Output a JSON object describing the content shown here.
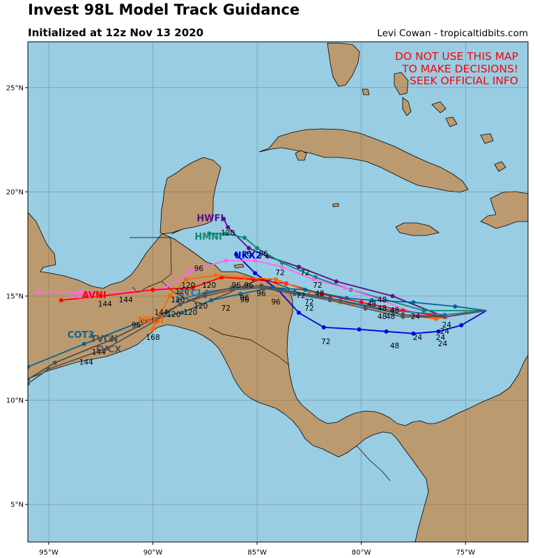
{
  "title": "Invest 98L Model Track Guidance",
  "subtitle": "Initialized at 12z Nov 13 2020",
  "credit": "Levi Cowan - tropicaltidbits.com",
  "warning": [
    "DO NOT USE THIS MAP",
    "TO MAKE DECISIONS!",
    "SEEK OFFICIAL INFO"
  ],
  "colors": {
    "ocean": "#98cde3",
    "land": "#bc9a6f",
    "warning": "#ff0000"
  },
  "chart_data": {
    "type": "map",
    "lon_range": [
      -96,
      -72
    ],
    "lat_range": [
      3.2,
      27.2
    ],
    "lon_ticks": [
      {
        "v": -95,
        "label": "95°W"
      },
      {
        "v": -90,
        "label": "90°W"
      },
      {
        "v": -85,
        "label": "85°W"
      },
      {
        "v": -80,
        "label": "80°W"
      },
      {
        "v": -75,
        "label": "75°W"
      }
    ],
    "lat_ticks": [
      {
        "v": 5,
        "label": "5°N"
      },
      {
        "v": 10,
        "label": "10°N"
      },
      {
        "v": 15,
        "label": "15°N"
      },
      {
        "v": 20,
        "label": "20°N"
      },
      {
        "v": 25,
        "label": "25°N"
      }
    ],
    "grid": true,
    "hour_labels": [
      {
        "t": "24",
        "lon": -77.4,
        "lat": 13.9,
        "c": "#000"
      },
      {
        "t": "24",
        "lon": -77.3,
        "lat": 12.9,
        "c": "#000"
      },
      {
        "t": "24",
        "lon": -76.2,
        "lat": 12.9,
        "c": "#000"
      },
      {
        "t": "24",
        "lon": -76.1,
        "lat": 12.6,
        "c": "#000"
      },
      {
        "t": "24",
        "lon": -76.0,
        "lat": 13.2,
        "c": "#000"
      },
      {
        "t": "24",
        "lon": -75.9,
        "lat": 13.5,
        "c": "#000"
      },
      {
        "t": "48",
        "lon": -79.5,
        "lat": 14.5,
        "c": "#000"
      },
      {
        "t": "48",
        "lon": -79.0,
        "lat": 14.7,
        "c": "#000"
      },
      {
        "t": "48",
        "lon": -78.4,
        "lat": 14.2,
        "c": "#000"
      },
      {
        "t": "48",
        "lon": -79.0,
        "lat": 14.3,
        "c": "#000"
      },
      {
        "t": "48",
        "lon": -79.0,
        "lat": 13.9,
        "c": "#000"
      },
      {
        "t": "48",
        "lon": -78.6,
        "lat": 13.9,
        "c": "#000"
      },
      {
        "t": "48",
        "lon": -78.4,
        "lat": 12.5,
        "c": "#000"
      },
      {
        "t": "48",
        "lon": -82.0,
        "lat": 15.0,
        "c": "#000"
      },
      {
        "t": "72",
        "lon": -83.9,
        "lat": 16.0,
        "c": "#000"
      },
      {
        "t": "72",
        "lon": -82.7,
        "lat": 16.0,
        "c": "#000"
      },
      {
        "t": "72",
        "lon": -82.1,
        "lat": 15.4,
        "c": "#000"
      },
      {
        "t": "72",
        "lon": -82.9,
        "lat": 14.9,
        "c": "#000"
      },
      {
        "t": "72",
        "lon": -82.5,
        "lat": 14.6,
        "c": "#000"
      },
      {
        "t": "72",
        "lon": -82.5,
        "lat": 14.3,
        "c": "#000"
      },
      {
        "t": "72",
        "lon": -81.7,
        "lat": 12.7,
        "c": "#000"
      },
      {
        "t": "72",
        "lon": -86.5,
        "lat": 14.3,
        "c": "#000"
      },
      {
        "t": "96",
        "lon": -87.8,
        "lat": 16.2,
        "c": "#000"
      },
      {
        "t": "96",
        "lon": -86.0,
        "lat": 15.4,
        "c": "#000"
      },
      {
        "t": "96",
        "lon": -85.4,
        "lat": 15.4,
        "c": "#000"
      },
      {
        "t": "96",
        "lon": -85.6,
        "lat": 14.8,
        "c": "#000"
      },
      {
        "t": "96",
        "lon": -85.6,
        "lat": 14.7,
        "c": "#000"
      },
      {
        "t": "96",
        "lon": -84.8,
        "lat": 15.0,
        "c": "#000"
      },
      {
        "t": "96",
        "lon": -84.1,
        "lat": 14.6,
        "c": "#000"
      },
      {
        "t": "96",
        "lon": -85.5,
        "lat": 16.9,
        "c": "#000"
      },
      {
        "t": "96",
        "lon": -84.7,
        "lat": 16.9,
        "c": "#000"
      },
      {
        "t": "96",
        "lon": -90.8,
        "lat": 13.5,
        "c": "#000"
      },
      {
        "t": "120",
        "lon": -86.4,
        "lat": 17.9,
        "c": "#000"
      },
      {
        "t": "120",
        "lon": -87.3,
        "lat": 15.4,
        "c": "#000"
      },
      {
        "t": "120",
        "lon": -88.3,
        "lat": 15.4,
        "c": "#000"
      },
      {
        "t": "120",
        "lon": -88.6,
        "lat": 15.1,
        "c": "#000"
      },
      {
        "t": "120",
        "lon": -88.8,
        "lat": 14.7,
        "c": "#000"
      },
      {
        "t": "120",
        "lon": -87.7,
        "lat": 14.4,
        "c": "#000"
      },
      {
        "t": "120",
        "lon": -88.2,
        "lat": 14.1,
        "c": "#000"
      },
      {
        "t": "120",
        "lon": -89.0,
        "lat": 14.0,
        "c": "#000"
      },
      {
        "t": "144",
        "lon": -92.3,
        "lat": 14.5,
        "c": "#000"
      },
      {
        "t": "144",
        "lon": -91.3,
        "lat": 14.7,
        "c": "#000"
      },
      {
        "t": "144",
        "lon": -89.6,
        "lat": 14.1,
        "c": "#000"
      },
      {
        "t": "144",
        "lon": -92.6,
        "lat": 12.2,
        "c": "#000"
      },
      {
        "t": "144",
        "lon": -93.2,
        "lat": 11.7,
        "c": "#000"
      },
      {
        "t": "168",
        "lon": -90.0,
        "lat": 12.9,
        "c": "#000"
      }
    ],
    "series": [
      {
        "name": "HWFI",
        "color": "#5b0f8a",
        "labelLon": -87.9,
        "labelLat": 18.6,
        "points": [
          [
            -74.0,
            14.3
          ],
          [
            -76.0,
            14.0
          ],
          [
            -78.5,
            15.0
          ],
          [
            -81.2,
            15.7
          ],
          [
            -83.0,
            16.4
          ],
          [
            -84.5,
            16.9
          ],
          [
            -85.4,
            17.3
          ],
          [
            -86.4,
            18.3
          ],
          [
            -86.6,
            18.7
          ]
        ]
      },
      {
        "name": "HMNI",
        "color": "#0a8a6a",
        "labelLon": -88.0,
        "labelLat": 17.7,
        "points": [
          [
            -74.0,
            14.3
          ],
          [
            -77.0,
            14.3
          ],
          [
            -80.5,
            15.3
          ],
          [
            -82.2,
            15.9
          ],
          [
            -83.8,
            16.6
          ],
          [
            -85.0,
            17.3
          ],
          [
            -85.6,
            17.8
          ],
          [
            -86.5,
            18.0
          ],
          [
            -87.3,
            18.0
          ]
        ]
      },
      {
        "name": "UKX2",
        "color": "#0000dd",
        "labelLon": -86.1,
        "labelLat": 16.8,
        "points": [
          [
            -74.0,
            14.3
          ],
          [
            -75.2,
            13.6
          ],
          [
            -76.3,
            13.3
          ],
          [
            -77.5,
            13.2
          ],
          [
            -78.8,
            13.3
          ],
          [
            -80.1,
            13.4
          ],
          [
            -81.8,
            13.5
          ],
          [
            -83.0,
            14.2
          ],
          [
            -84.0,
            15.3
          ],
          [
            -85.1,
            16.1
          ],
          [
            -86.0,
            17.0
          ]
        ]
      },
      {
        "name": "CEMN",
        "color": "#ff66ee",
        "labelLon": -94.0,
        "labelLat": 14.9,
        "points": [
          [
            -74.0,
            14.3
          ],
          [
            -75.9,
            14.0
          ],
          [
            -77.3,
            14.1
          ],
          [
            -79.0,
            14.8
          ],
          [
            -80.8,
            15.4
          ],
          [
            -82.3,
            15.8
          ],
          [
            -83.8,
            16.4
          ],
          [
            -85.1,
            16.7
          ],
          [
            -86.5,
            16.7
          ],
          [
            -88.2,
            16.2
          ],
          [
            -89.4,
            15.4
          ],
          [
            -91.0,
            15.2
          ],
          [
            -93.5,
            15.2
          ],
          [
            -95.5,
            15.2
          ]
        ]
      },
      {
        "name": "AVNI",
        "color": "#ff0000",
        "labelLon": -93.4,
        "labelLat": 14.9,
        "points": [
          [
            -74.0,
            14.3
          ],
          [
            -76.0,
            14.0
          ],
          [
            -78.0,
            14.3
          ],
          [
            -80.0,
            14.7
          ],
          [
            -81.9,
            15.1
          ],
          [
            -83.6,
            15.6
          ],
          [
            -85.2,
            15.8
          ],
          [
            -86.7,
            15.9
          ],
          [
            -88.1,
            15.4
          ],
          [
            -90.0,
            15.3
          ],
          [
            -92.5,
            15.0
          ],
          [
            -94.4,
            14.8
          ]
        ]
      },
      {
        "name": "NVGI",
        "color": "#ff6600",
        "labelLon": -90.7,
        "labelLat": 13.7,
        "points": [
          [
            -74.0,
            14.3
          ],
          [
            -75.0,
            14.2
          ],
          [
            -76.4,
            13.9
          ],
          [
            -78.0,
            14.1
          ],
          [
            -79.5,
            14.5
          ],
          [
            -81.0,
            14.7
          ],
          [
            -82.5,
            15.2
          ],
          [
            -84.1,
            15.8
          ],
          [
            -85.6,
            15.9
          ],
          [
            -87.0,
            16.0
          ],
          [
            -88.4,
            15.8
          ],
          [
            -89.2,
            15.0
          ],
          [
            -89.7,
            14.0
          ],
          [
            -90.0,
            13.4
          ]
        ]
      },
      {
        "name": "CTCI",
        "color": "#1f77b4",
        "labelLon": -88.8,
        "labelLat": 15.0,
        "points": [
          [
            -74.0,
            14.3
          ],
          [
            -76.0,
            14.1
          ],
          [
            -78.5,
            14.3
          ],
          [
            -81.0,
            14.8
          ],
          [
            -83.0,
            15.1
          ],
          [
            -84.6,
            15.4
          ],
          [
            -86.0,
            15.4
          ],
          [
            -87.4,
            15.2
          ],
          [
            -88.8,
            14.8
          ]
        ]
      },
      {
        "name": "COT3",
        "color": "#006699",
        "labelLon": -94.1,
        "labelLat": 13.0,
        "points": [
          [
            -74.0,
            14.3
          ],
          [
            -75.5,
            14.5
          ],
          [
            -77.5,
            14.7
          ],
          [
            -79.5,
            14.8
          ],
          [
            -80.7,
            14.9
          ],
          [
            -82.7,
            15.3
          ],
          [
            -84.3,
            15.4
          ],
          [
            -85.8,
            15.1
          ],
          [
            -87.2,
            14.8
          ],
          [
            -88.6,
            14.2
          ],
          [
            -90.5,
            13.8
          ],
          [
            -93.3,
            12.7
          ],
          [
            -96.0,
            11.6
          ]
        ]
      },
      {
        "name": "TVCN",
        "color": "#4d4d4d",
        "labelLon": -93.0,
        "labelLat": 12.8,
        "points": [
          [
            -74.0,
            14.3
          ],
          [
            -76.0,
            14.0
          ],
          [
            -78.0,
            14.1
          ],
          [
            -79.8,
            14.5
          ],
          [
            -81.5,
            14.9
          ],
          [
            -83.2,
            15.2
          ],
          [
            -84.8,
            15.5
          ],
          [
            -86.2,
            15.4
          ],
          [
            -87.5,
            15.1
          ],
          [
            -88.7,
            14.6
          ],
          [
            -90.0,
            13.9
          ],
          [
            -92.0,
            12.9
          ],
          [
            -94.7,
            11.8
          ],
          [
            -96.0,
            11.0
          ]
        ]
      },
      {
        "name": "TVCX",
        "color": "#555555",
        "labelLon": -92.8,
        "labelLat": 12.3,
        "points": [
          [
            -74.0,
            14.3
          ],
          [
            -76.0,
            14.0
          ],
          [
            -78.0,
            14.0
          ],
          [
            -79.8,
            14.4
          ],
          [
            -81.5,
            14.8
          ],
          [
            -83.2,
            15.1
          ],
          [
            -84.8,
            15.4
          ],
          [
            -86.2,
            15.3
          ],
          [
            -87.5,
            15.0
          ],
          [
            -88.7,
            14.6
          ],
          [
            -89.9,
            13.8
          ],
          [
            -92.2,
            12.5
          ],
          [
            -95.0,
            11.5
          ],
          [
            -96.0,
            10.8
          ]
        ]
      }
    ]
  }
}
